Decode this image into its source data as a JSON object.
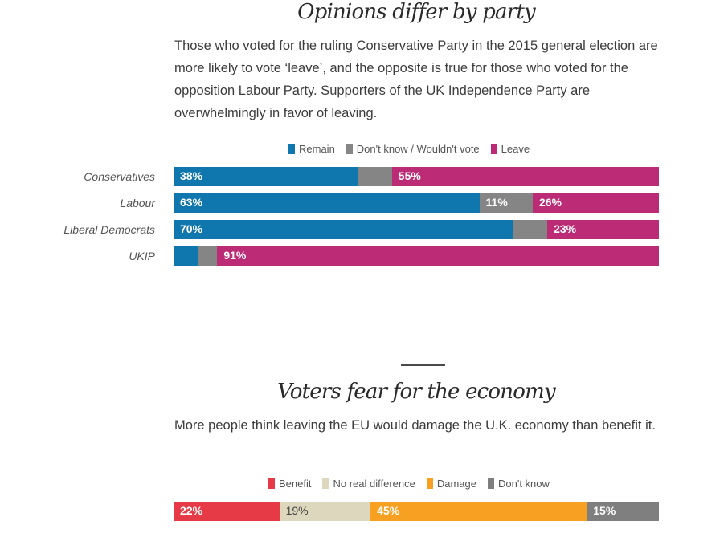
{
  "sections": [
    {
      "title": "Opinions differ by party",
      "description": "Those who voted for the ruling Conservative Party in the 2015 general election are more likely to vote ‘leave’, and the opposite is true for those who voted for the opposition Labour Party. Supporters of the UK Independence Party are overwhelmingly in favor of leaving."
    },
    {
      "title": "Voters fear for the economy",
      "description": "More people think leaving the EU would damage the U.K. economy than benefit it."
    }
  ],
  "chart_data": [
    {
      "type": "bar",
      "stacked": true,
      "orientation": "horizontal",
      "title": "Opinions differ by party",
      "categories": [
        "Conservatives",
        "Labour",
        "Liberal Democrats",
        "UKIP"
      ],
      "series": [
        {
          "name": "Remain",
          "color": "#0f77ad",
          "values": [
            38,
            63,
            70,
            5
          ],
          "labels": [
            "38%",
            "63%",
            "70%",
            ""
          ]
        },
        {
          "name": "Don't know / Wouldn't vote",
          "color": "#858585",
          "values": [
            7,
            11,
            7,
            4
          ],
          "labels": [
            "",
            "11%",
            "",
            ""
          ]
        },
        {
          "name": "Leave",
          "color": "#bb2b76",
          "values": [
            55,
            26,
            23,
            91
          ],
          "labels": [
            "55%",
            "26%",
            "23%",
            "91%"
          ]
        }
      ],
      "xlim": [
        0,
        100
      ],
      "legend": "top-center",
      "grid": false
    },
    {
      "type": "bar",
      "stacked": true,
      "orientation": "horizontal",
      "title": "Voters fear for the economy",
      "categories": [
        ""
      ],
      "series": [
        {
          "name": "Benefit",
          "color": "#e63a46",
          "values": [
            22
          ],
          "labels": [
            "22%"
          ],
          "label_color": "light"
        },
        {
          "name": "No real difference",
          "color": "#dcd7bd",
          "values": [
            19
          ],
          "labels": [
            "19%"
          ],
          "label_color": "dark"
        },
        {
          "name": "Damage",
          "color": "#f7a021",
          "values": [
            45
          ],
          "labels": [
            "45%"
          ],
          "label_color": "light"
        },
        {
          "name": "Don't know",
          "color": "#7f7f7f",
          "values": [
            15
          ],
          "labels": [
            "15%"
          ],
          "label_color": "light"
        }
      ],
      "xlim": [
        0,
        101
      ],
      "legend": "top-center",
      "grid": false
    }
  ]
}
